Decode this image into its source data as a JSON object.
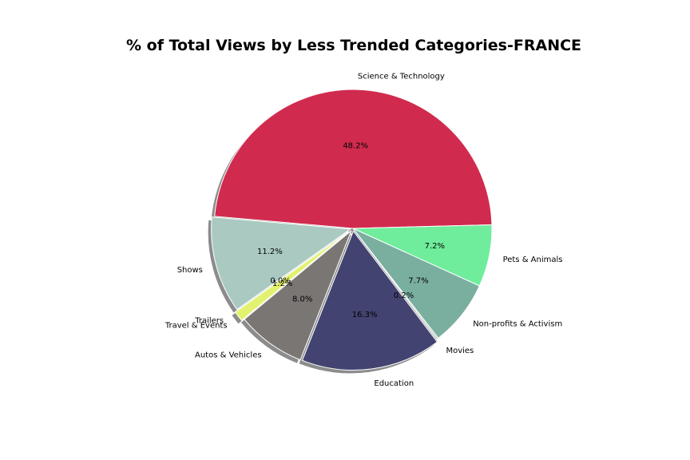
{
  "chart_data": {
    "type": "pie",
    "title": "% of Total Views by Less Trended Categories-FRANCE",
    "slices": [
      {
        "label": "Science & Technology",
        "value": 48.2,
        "pct_label": "48.2%",
        "color": "#d02b4e"
      },
      {
        "label": "Pets & Animals",
        "value": 7.2,
        "pct_label": "7.2%",
        "color": "#6fed9c"
      },
      {
        "label": "Non-profits & Activism",
        "value": 7.7,
        "pct_label": "7.7%",
        "color": "#7aafa0"
      },
      {
        "label": "Movies",
        "value": 0.2,
        "pct_label": "0.2%",
        "color": "#b9c6c2"
      },
      {
        "label": "Education",
        "value": 16.3,
        "pct_label": "16.3%",
        "color": "#424370"
      },
      {
        "label": "Autos & Vehicles",
        "value": 8.0,
        "pct_label": "8.0%",
        "color": "#7a7674"
      },
      {
        "label": "Travel & Events",
        "value": 1.2,
        "pct_label": "1.2%",
        "color": "#e3f26e"
      },
      {
        "label": "Trailers",
        "value": 0.0,
        "pct_label": "0.0%",
        "color": "#c9d3cf"
      },
      {
        "label": "Shows",
        "value": 11.2,
        "pct_label": "11.2%",
        "color": "#a9c9c1"
      }
    ],
    "start_angle_deg": -85,
    "shadow": true,
    "legend": "none"
  }
}
